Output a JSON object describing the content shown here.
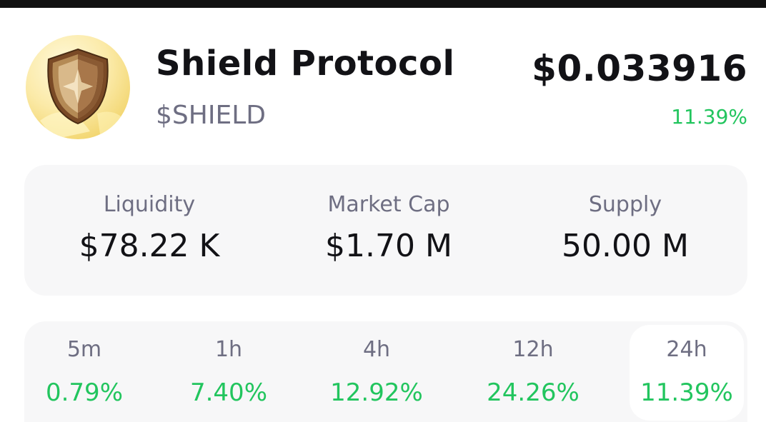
{
  "token": {
    "name": "Shield Protocol",
    "symbol": "$SHIELD",
    "price": "$0.033916",
    "change": "11.39%",
    "logo_icon": "shield-icon"
  },
  "stats": {
    "liquidity": {
      "label": "Liquidity",
      "value": "$78.22 K"
    },
    "market_cap": {
      "label": "Market Cap",
      "value": "$1.70 M"
    },
    "supply": {
      "label": "Supply",
      "value": "50.00 M"
    }
  },
  "timeframes": [
    {
      "label": "5m",
      "change": "0.79%"
    },
    {
      "label": "1h",
      "change": "7.40%"
    },
    {
      "label": "4h",
      "change": "12.92%"
    },
    {
      "label": "12h",
      "change": "24.26%"
    },
    {
      "label": "24h",
      "change": "11.39%",
      "selected": true
    }
  ],
  "colors": {
    "positive": "#22c55e",
    "muted_text": "#6e6e82",
    "card_background": "#f7f7f8"
  }
}
